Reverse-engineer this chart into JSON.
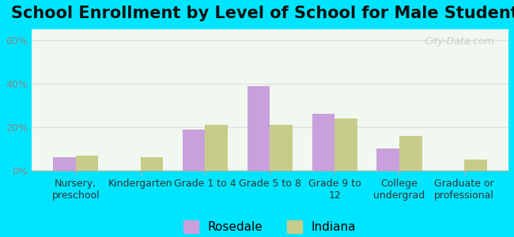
{
  "title": "School Enrollment by Level of School for Male Students",
  "categories": [
    "Nursery,\npreschool",
    "Kindergarten",
    "Grade 1 to 4",
    "Grade 5 to 8",
    "Grade 9 to\n12",
    "College\nundergrad",
    "Graduate or\nprofessional"
  ],
  "rosedale": [
    6,
    0,
    19,
    39,
    26,
    10,
    0
  ],
  "indiana": [
    7,
    6,
    21,
    21,
    24,
    16,
    5
  ],
  "rosedale_color": "#c9a0dc",
  "indiana_color": "#c8cc8a",
  "background_outer": "#00e5ff",
  "background_inner_top": "#f0f8f0",
  "background_inner_bottom": "#e8f5e0",
  "yticks": [
    0,
    20,
    40,
    60
  ],
  "ylabels": [
    "0%",
    "20%",
    "40%",
    "60%"
  ],
  "ylim": [
    0,
    65
  ],
  "bar_width": 0.35,
  "title_fontsize": 15,
  "tick_fontsize": 9,
  "legend_fontsize": 11,
  "axis_tick_color": "#888888",
  "grid_color": "#dddddd",
  "watermark": "City-Data.com"
}
